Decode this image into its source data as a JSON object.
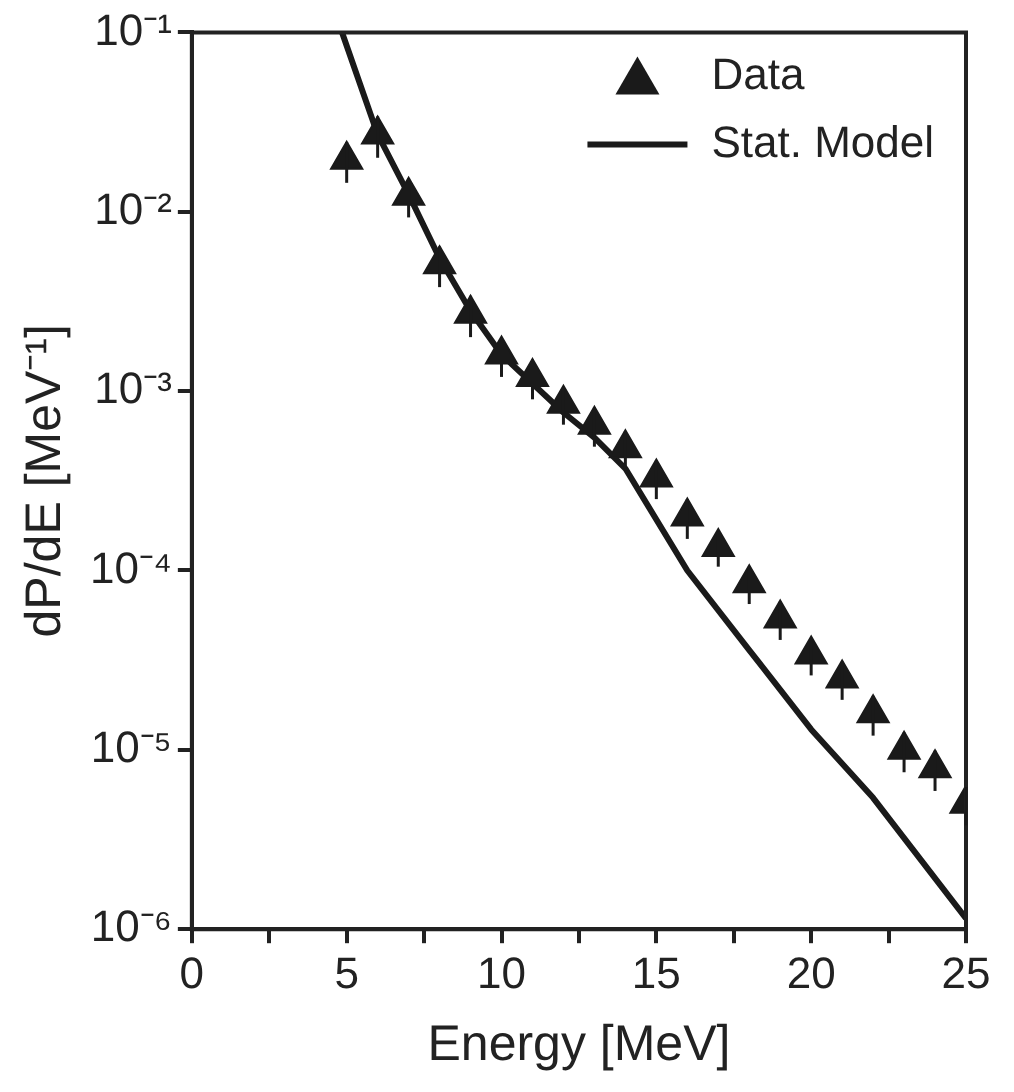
{
  "chart_data": {
    "type": "scatter",
    "xlabel": "Energy [MeV]",
    "ylabel": "dP/dE [MeV⁻¹]",
    "xlim": [
      0,
      25
    ],
    "xticks": [
      0,
      {
        "value": 2.5,
        "label": null
      },
      5,
      {
        "value": 7.5,
        "label": null
      },
      10,
      {
        "value": 12.5,
        "label": null
      },
      15,
      {
        "value": 17.5,
        "label": null
      },
      20,
      {
        "value": 22.5,
        "label": null
      },
      25
    ],
    "ylim": [
      1e-06,
      0.1
    ],
    "yticks": [
      {
        "value": 1e-06,
        "label": "10⁻⁶"
      },
      {
        "value": 1e-05,
        "label": "10⁻⁵"
      },
      {
        "value": 0.0001,
        "label": "10⁻⁴"
      },
      {
        "value": 0.001,
        "label": "10⁻³"
      },
      {
        "value": 0.01,
        "label": "10⁻²"
      },
      {
        "value": 0.1,
        "label": "10⁻¹"
      }
    ],
    "log": "y",
    "grid": false,
    "legend": "top right",
    "series": [
      {
        "name": "Data",
        "marker": "triangle",
        "color": "#1a1a1a",
        "x": [
          5,
          6,
          7,
          8,
          9,
          10,
          11,
          12,
          13,
          14,
          15,
          16,
          17,
          18,
          19,
          20,
          21,
          22,
          23,
          24,
          25
        ],
        "values": [
          0.0195,
          0.027,
          0.0123,
          0.0051,
          0.0027,
          0.0016,
          0.0012,
          0.00085,
          0.00065,
          0.00048,
          0.00033,
          0.0002,
          0.000135,
          8.5e-05,
          5.4e-05,
          3.4e-05,
          2.5e-05,
          1.6e-05,
          1e-05,
          7.9e-06,
          5e-06
        ],
        "errors": [
          0.005,
          0.007,
          0.003,
          0.0013,
          0.0007,
          0.0004,
          0.0003,
          0.0002,
          0.00016,
          0.00012,
          8e-05,
          5e-05,
          3e-05,
          2e-05,
          1.3e-05,
          8e-06,
          6e-06,
          4e-06,
          2.5e-06,
          2e-06,
          1.2e-06
        ]
      },
      {
        "name": "Stat. Model",
        "type": "line",
        "marker": "none",
        "line_style": "solid",
        "color": "#1a1a1a",
        "x": [
          4.85,
          6,
          7,
          8,
          9,
          10,
          12,
          13,
          14,
          16,
          18,
          20,
          22,
          25
        ],
        "values": [
          0.1,
          0.027,
          0.0125,
          0.0055,
          0.0028,
          0.0016,
          0.00076,
          0.00055,
          0.00037,
          0.0001,
          3.6e-05,
          1.3e-05,
          5.4e-06,
          1.15e-06
        ]
      }
    ]
  }
}
